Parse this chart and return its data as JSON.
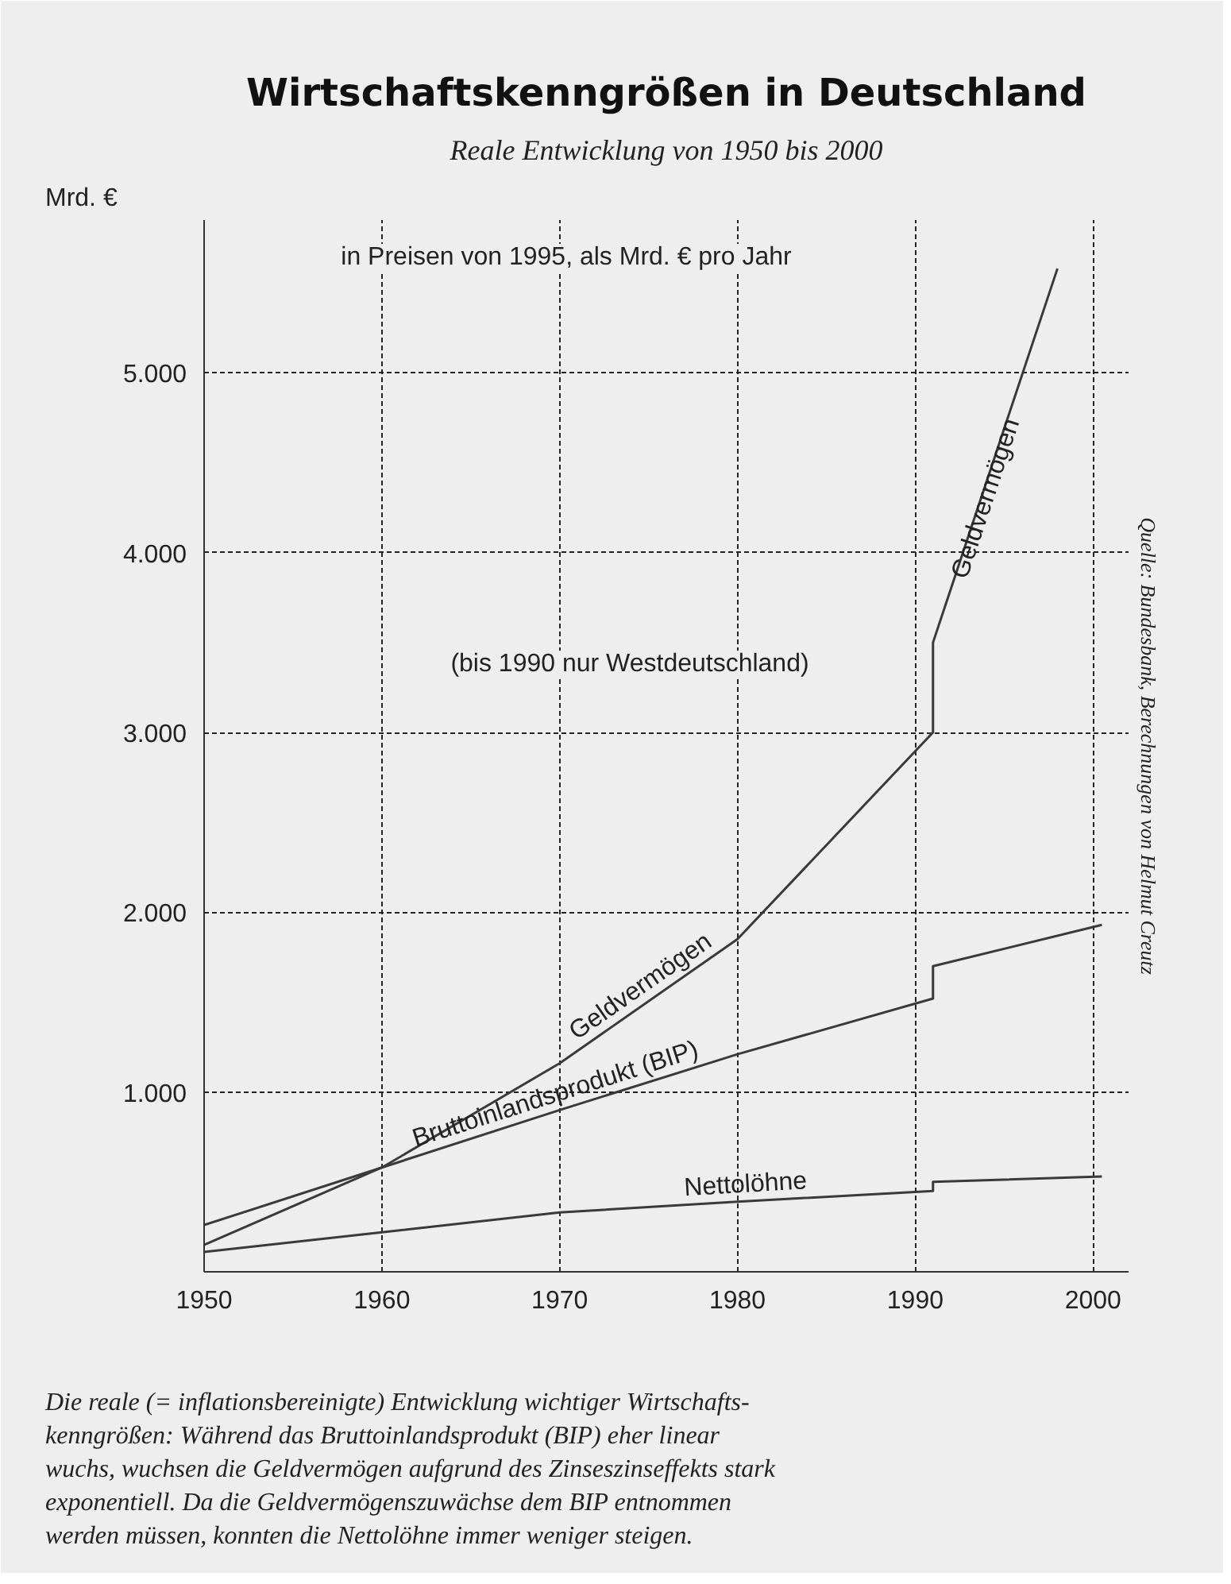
{
  "chart_data": {
    "type": "line",
    "title": "Wirtschaftskenngrößen in Deutschland",
    "subtitle": "Reale Entwicklung von 1950 bis 2000",
    "ylabel": "Mrd. €",
    "xlim": [
      1950,
      2002
    ],
    "ylim": [
      0,
      5850
    ],
    "xticks": [
      1950,
      1960,
      1970,
      1980,
      1990,
      2000
    ],
    "yticks": [
      {
        "value": 1000,
        "label": "1.000"
      },
      {
        "value": 2000,
        "label": "2.000"
      },
      {
        "value": 3000,
        "label": "3.000"
      },
      {
        "value": 4000,
        "label": "4.000"
      },
      {
        "value": 5000,
        "label": "5.000"
      }
    ],
    "grid": true,
    "line_style": "solid",
    "series": [
      {
        "name": "Geldvermögen",
        "color": "#3a3a3a",
        "x": [
          1950,
          1960,
          1970,
          1980,
          1991,
          1991,
          1998
        ],
        "values": [
          150,
          580,
          1160,
          1850,
          3000,
          3500,
          5580
        ]
      },
      {
        "name": "Bruttoinlandsprodukt (BIP)",
        "color": "#3a3a3a",
        "x": [
          1950,
          1960,
          1970,
          1980,
          1991,
          1991,
          2000.5
        ],
        "values": [
          260,
          580,
          900,
          1210,
          1520,
          1700,
          1930
        ]
      },
      {
        "name": "Nettolöhne",
        "color": "#3a3a3a",
        "x": [
          1950,
          1960,
          1970,
          1980,
          1991,
          1991,
          2000.5
        ],
        "values": [
          110,
          220,
          330,
          390,
          450,
          500,
          530
        ]
      }
    ],
    "annotations": [
      "in Preisen von 1995, als Mrd. € pro Jahr",
      "(bis 1990 nur Westdeutschland)",
      {
        "text": "Geldvermögen",
        "x": 1994,
        "y": 4300
      },
      "Die reale (= inflationsbereinigte) Entwicklung wichtiger Wirtschafts-\nkenngrößen: Während das Bruttoinlandsprodukt (BIP) eher linear\nwuchs, wuchsen die Geldvermögen aufgrund des Zinseszinseffekts stark\nexponentiell. Da die Geldvermögenszuwächse dem BIP entnommen\nwerden müssen, konnten die Nettolöhne immer weniger steigen.",
      "Quelle: Bundesbank, Berechnungen von Helmut Creutz"
    ]
  }
}
